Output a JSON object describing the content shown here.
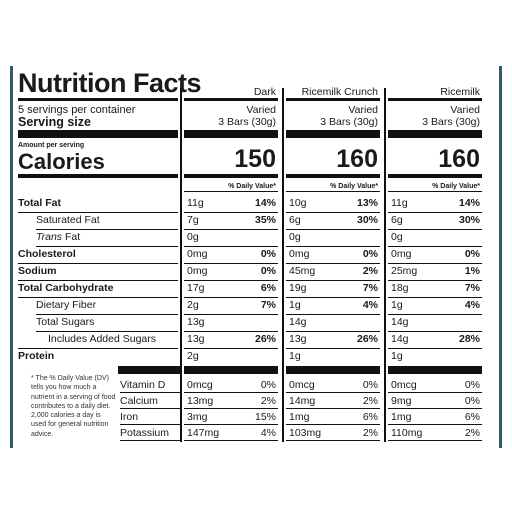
{
  "title": "Nutrition Facts",
  "servings": "5 servings per container",
  "serving_size_label": "Serving size",
  "amount_per_serving": "Amount per serving",
  "calories_label": "Calories",
  "daily_value_header": "% Daily Value*",
  "columns": [
    {
      "name": "Dark",
      "serving_top": "Varied",
      "serving_bottom": "3 Bars (30g)",
      "calories": "150"
    },
    {
      "name": "Ricemilk Crunch",
      "serving_top": "Varied",
      "serving_bottom": "3 Bars (30g)",
      "calories": "160"
    },
    {
      "name": "Ricemilk",
      "serving_top": "Varied",
      "serving_bottom": "3 Bars (30g)",
      "calories": "160"
    }
  ],
  "nutrients": [
    {
      "label": "Total Fat",
      "values": [
        [
          "11g",
          "14%"
        ],
        [
          "10g",
          "13%"
        ],
        [
          "11g",
          "14%"
        ]
      ]
    },
    {
      "label": "Saturated Fat",
      "values": [
        [
          "7g",
          "35%"
        ],
        [
          "6g",
          "30%"
        ],
        [
          "6g",
          "30%"
        ]
      ]
    },
    {
      "label": "Trans Fat",
      "label_prefix": "Trans",
      "label_suffix": " Fat",
      "values": [
        [
          "0g",
          ""
        ],
        [
          "0g",
          ""
        ],
        [
          "0g",
          ""
        ]
      ]
    },
    {
      "label": "Cholesterol",
      "values": [
        [
          "0mg",
          "0%"
        ],
        [
          "0mg",
          "0%"
        ],
        [
          "0mg",
          "0%"
        ]
      ]
    },
    {
      "label": "Sodium",
      "values": [
        [
          "0mg",
          "0%"
        ],
        [
          "45mg",
          "2%"
        ],
        [
          "25mg",
          "1%"
        ]
      ]
    },
    {
      "label": "Total Carbohydrate",
      "values": [
        [
          "17g",
          "6%"
        ],
        [
          "19g",
          "7%"
        ],
        [
          "18g",
          "7%"
        ]
      ]
    },
    {
      "label": "Dietary Fiber",
      "values": [
        [
          "2g",
          "7%"
        ],
        [
          "1g",
          "4%"
        ],
        [
          "1g",
          "4%"
        ]
      ]
    },
    {
      "label": "Total Sugars",
      "values": [
        [
          "13g",
          ""
        ],
        [
          "14g",
          ""
        ],
        [
          "14g",
          ""
        ]
      ]
    },
    {
      "label": "Includes Added Sugars",
      "values": [
        [
          "13g",
          "26%"
        ],
        [
          "13g",
          "26%"
        ],
        [
          "14g",
          "28%"
        ]
      ]
    },
    {
      "label": "Protein",
      "values": [
        [
          "2g",
          ""
        ],
        [
          "1g",
          ""
        ],
        [
          "1g",
          ""
        ]
      ]
    }
  ],
  "vitamins": [
    {
      "label": "Vitamin D",
      "values": [
        [
          "0mcg",
          "0%"
        ],
        [
          "0mcg",
          "0%"
        ],
        [
          "0mcg",
          "0%"
        ]
      ]
    },
    {
      "label": "Calcium",
      "values": [
        [
          "13mg",
          "2%"
        ],
        [
          "14mg",
          "2%"
        ],
        [
          "9mg",
          "0%"
        ]
      ]
    },
    {
      "label": "Iron",
      "values": [
        [
          "3mg",
          "15%"
        ],
        [
          "1mg",
          "6%"
        ],
        [
          "1mg",
          "6%"
        ]
      ]
    },
    {
      "label": "Potassium",
      "values": [
        [
          "147mg",
          "4%"
        ],
        [
          "103mg",
          "2%"
        ],
        [
          "110mg",
          "2%"
        ]
      ]
    }
  ],
  "footnote": "* The % Daily Value (DV) tells you how much a nutrient in a serving of food contributes to a daily diet. 2,000 calories a day is used for general nutrition advice."
}
